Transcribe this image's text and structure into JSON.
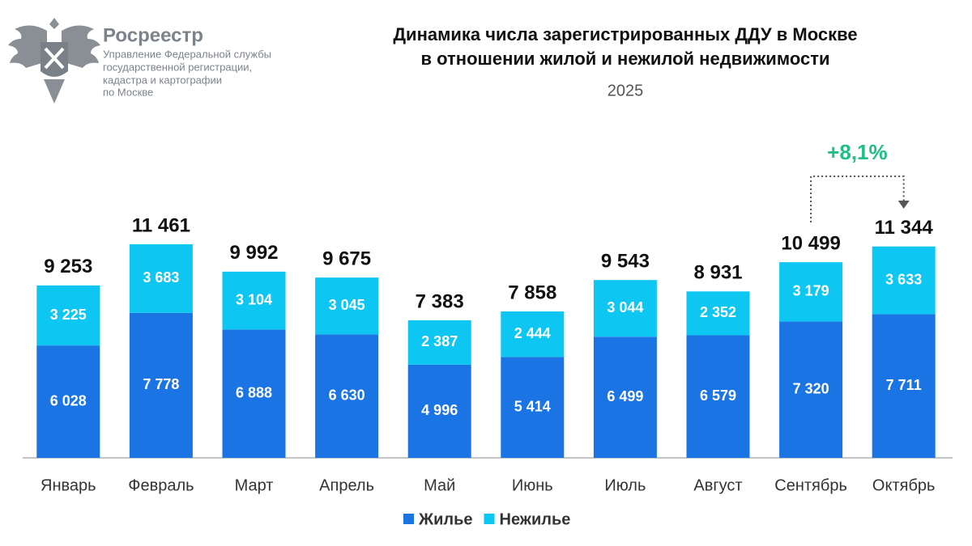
{
  "logo": {
    "name": "Росреестр",
    "lines": [
      "Управление Федеральной службы",
      "государственной регистрации,",
      "кадастра и картографии",
      "по Москве"
    ]
  },
  "chart_data": {
    "type": "stacked_bar",
    "title": [
      "Динамика числа зарегистрированных ДДУ в Москве",
      "в отношении жилой и нежилой недвижимости"
    ],
    "subtitle": "2025",
    "categories": [
      "Январь",
      "Февраль",
      "Март",
      "Апрель",
      "Май",
      "Июнь",
      "Июль",
      "Август",
      "Сентябрь",
      "Октябрь"
    ],
    "series": [
      {
        "name": "Жилье",
        "color": "#1b74e4",
        "values": [
          6028,
          7778,
          6888,
          6630,
          4996,
          5414,
          6499,
          6579,
          7320,
          7711
        ],
        "value_labels": [
          "6 028",
          "7 778",
          "6 888",
          "6 630",
          "4 996",
          "5 414",
          "6 499",
          "6 579",
          "7 320",
          "7 711"
        ]
      },
      {
        "name": "Нежилье",
        "color": "#0ec6f2",
        "values": [
          3225,
          3683,
          3104,
          3045,
          2387,
          2444,
          3044,
          2352,
          3179,
          3633
        ],
        "value_labels": [
          "3 225",
          "3 683",
          "3 104",
          "3 045",
          "2 387",
          "2 444",
          "3 044",
          "2 352",
          "3 179",
          "3 633"
        ]
      }
    ],
    "totals": [
      9253,
      11461,
      9992,
      9675,
      7383,
      7858,
      9543,
      8931,
      10499,
      11344
    ],
    "total_labels": [
      "9 253",
      "11 461",
      "9 992",
      "9 675",
      "7 383",
      "7 858",
      "9 543",
      "8 931",
      "10 499",
      "11 344"
    ],
    "annotation": "+8,1%"
  }
}
